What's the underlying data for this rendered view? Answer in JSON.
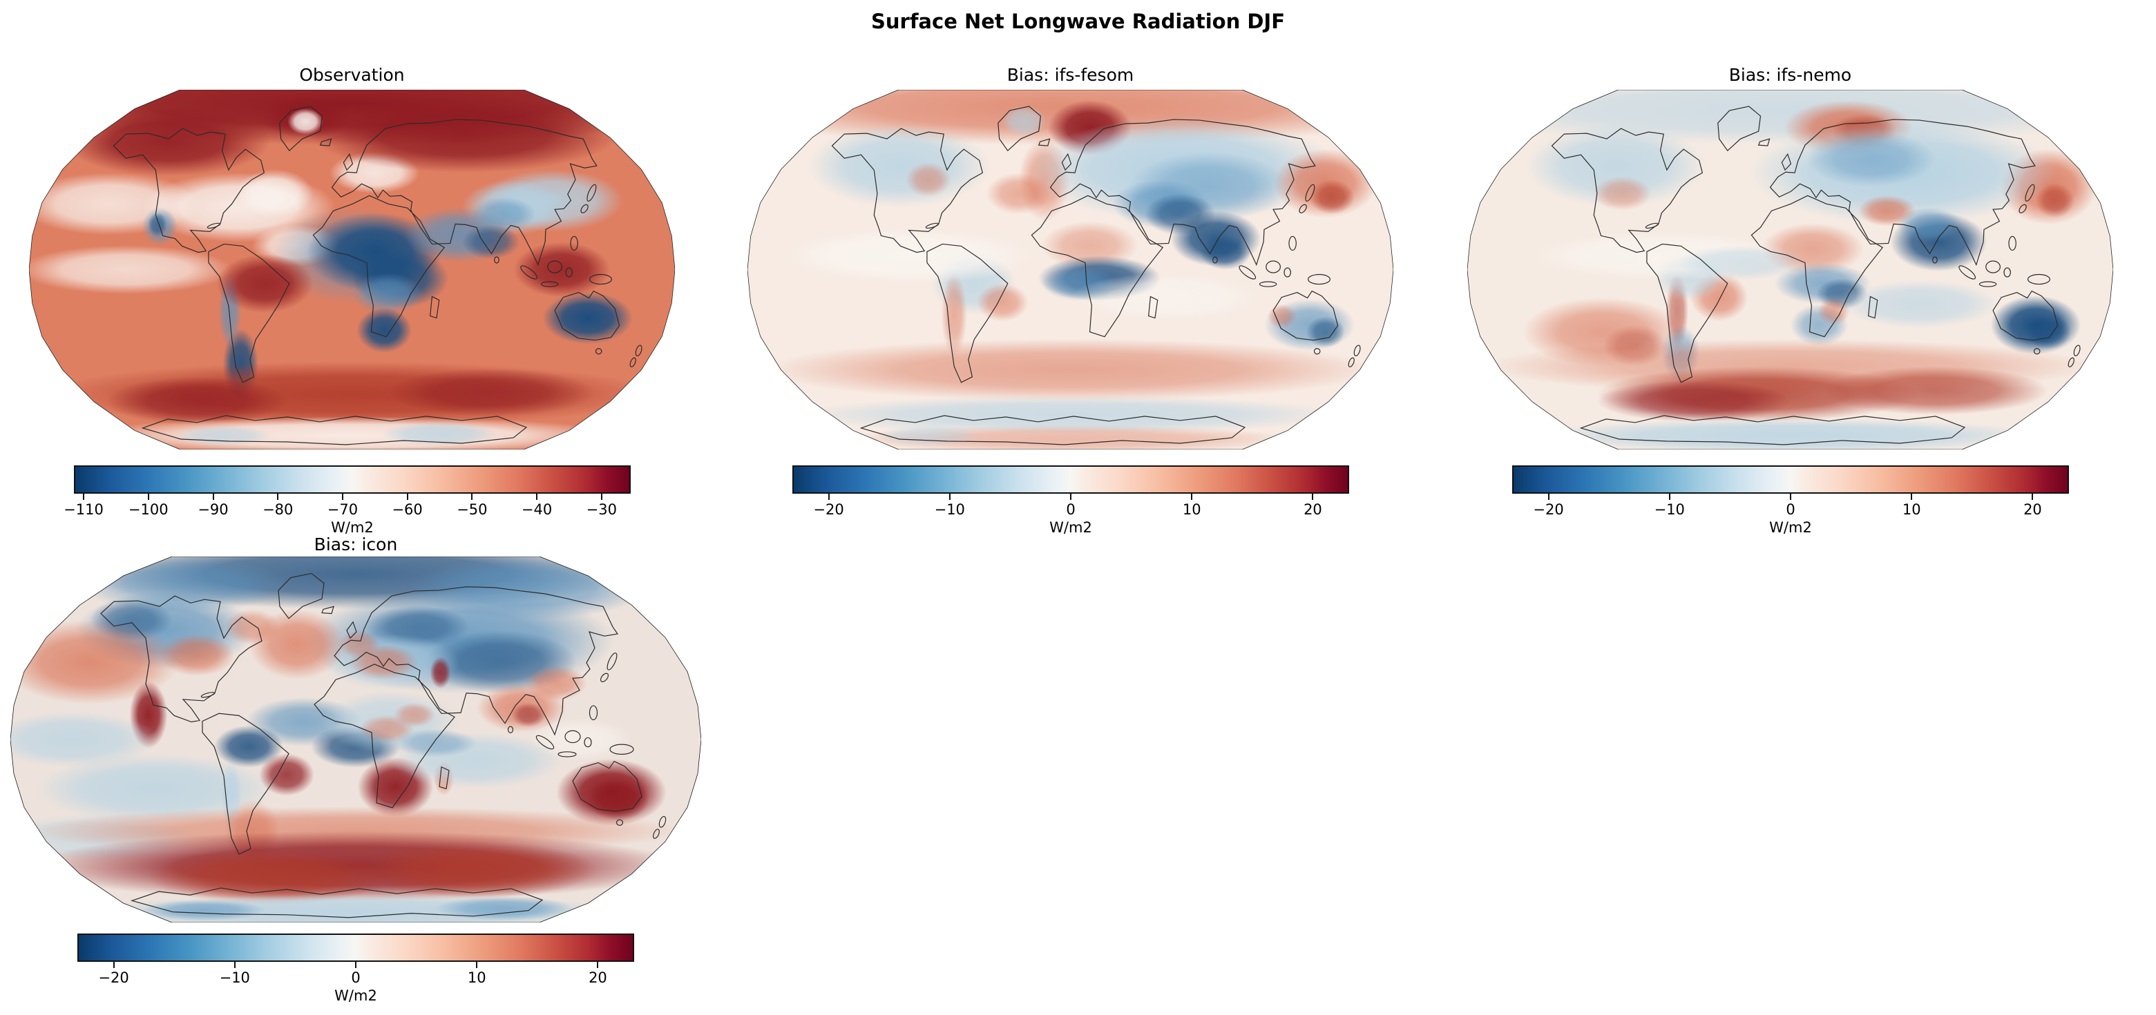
{
  "figure": {
    "title": "Surface Net Longwave Radiation DJF"
  },
  "panels": [
    {
      "id": "observation",
      "title": "Observation",
      "units": "W/m2",
      "colorbar": {
        "colormap": "RdBu_r",
        "vmin": -111.5,
        "vmax": -25.5,
        "ticks": [
          {
            "value": -110,
            "label": "−110"
          },
          {
            "value": -100,
            "label": "−100"
          },
          {
            "value": -90,
            "label": "−90"
          },
          {
            "value": -80,
            "label": "−80"
          },
          {
            "value": -70,
            "label": "−70"
          },
          {
            "value": -60,
            "label": "−60"
          },
          {
            "value": -50,
            "label": "−50"
          },
          {
            "value": -40,
            "label": "−40"
          },
          {
            "value": -30,
            "label": "−30"
          }
        ]
      }
    },
    {
      "id": "bias-ifs-fesom",
      "title": "Bias: ifs-fesom",
      "units": "W/m2",
      "colorbar": {
        "colormap": "RdBu_r",
        "vmin": -23,
        "vmax": 23,
        "ticks": [
          {
            "value": -20,
            "label": "−20"
          },
          {
            "value": -10,
            "label": "−10"
          },
          {
            "value": 0,
            "label": "0"
          },
          {
            "value": 10,
            "label": "10"
          },
          {
            "value": 20,
            "label": "20"
          }
        ]
      }
    },
    {
      "id": "bias-ifs-nemo",
      "title": "Bias: ifs-nemo",
      "units": "W/m2",
      "colorbar": {
        "colormap": "RdBu_r",
        "vmin": -23,
        "vmax": 23,
        "ticks": [
          {
            "value": -20,
            "label": "−20"
          },
          {
            "value": -10,
            "label": "−10"
          },
          {
            "value": 0,
            "label": "0"
          },
          {
            "value": 10,
            "label": "10"
          },
          {
            "value": 20,
            "label": "20"
          }
        ]
      }
    },
    {
      "id": "bias-icon",
      "title": "Bias: icon",
      "units": "W/m2",
      "colorbar": {
        "colormap": "RdBu_r",
        "vmin": -23,
        "vmax": 23,
        "ticks": [
          {
            "value": -20,
            "label": "−20"
          },
          {
            "value": -10,
            "label": "−10"
          },
          {
            "value": 0,
            "label": "0"
          },
          {
            "value": 10,
            "label": "10"
          },
          {
            "value": 20,
            "label": "20"
          }
        ]
      }
    }
  ],
  "chart_data": [
    {
      "type": "heatmap",
      "panel": "Observation",
      "variable": "Surface Net Longwave Radiation",
      "season": "DJF",
      "projection": "Robinson",
      "units": "W/m2",
      "colormap": "RdBu_r",
      "value_range": [
        -111.5,
        -25.5
      ],
      "colorbar_ticks": [
        -110,
        -100,
        -90,
        -80,
        -70,
        -60,
        -50,
        -40,
        -30
      ],
      "pattern": "Strongly negative values (−90 to −110, dark blue) over the Sahara, Arabian Peninsula and India, southern Africa, interior Australia, Baja California and Patagonia/Andes; weakly negative values (−30 to −45, dark red) over high northern latitudes (Canada, Greenland, Siberia), the Amazon, the Maritime Continent and a circum-Southern-Ocean band; mid-ocean values around −50 to −65 (salmon to near white)."
    },
    {
      "type": "heatmap",
      "panel": "Bias: ifs-fesom",
      "variable": "Surface Net Longwave Radiation bias vs observation",
      "season": "DJF",
      "projection": "Robinson",
      "units": "W/m2",
      "colormap": "RdBu_r",
      "value_range": [
        -23,
        23
      ],
      "colorbar_ticks": [
        -20,
        -10,
        0,
        10,
        20
      ],
      "pattern": "Mostly small biases (near white); negative (blue) over Eurasia, North America, Tibet/India, the Sahel and central Africa and patchy over Australia; strong positive (dark red) over the Norwegian/Greenland Sea and the NW Pacific near Kamchatka; weak positive over subtropical and southern mid-latitude oceans."
    },
    {
      "type": "heatmap",
      "panel": "Bias: ifs-nemo",
      "variable": "Surface Net Longwave Radiation bias vs observation",
      "season": "DJF",
      "projection": "Robinson",
      "units": "W/m2",
      "colormap": "RdBu_r",
      "value_range": [
        -23,
        23
      ],
      "colorbar_ticks": [
        -20,
        -10,
        0,
        10,
        20
      ],
      "pattern": "Similar to ifs-fesom: negative (blue) over Eurasia, Tibet/India, central Africa and strongly negative over Australia; positive (red) over the Barents/Kara Seas, the NW Pacific, eastern Brazil and the Peru coast, with a pronounced dark-red Southern Ocean band near 60°S."
    },
    {
      "type": "heatmap",
      "panel": "Bias: icon",
      "variable": "Surface Net Longwave Radiation bias vs observation",
      "season": "DJF",
      "projection": "Robinson",
      "units": "W/m2",
      "colormap": "RdBu_r",
      "value_range": [
        -23,
        23
      ],
      "colorbar_ticks": [
        -20,
        -10,
        0,
        10,
        20
      ],
      "pattern": "Largest biases of the three models: strong positive (dark red) over Australia, southern Africa, eastern Brazil, the subtropical eastern Pacific off Baja California and a thick circum-Antarctic Southern Ocean ring; negative (blue) over the Arctic, northern Eurasia, North America, tropical oceans, the western Amazon and the Gulf of Guinea."
    }
  ]
}
